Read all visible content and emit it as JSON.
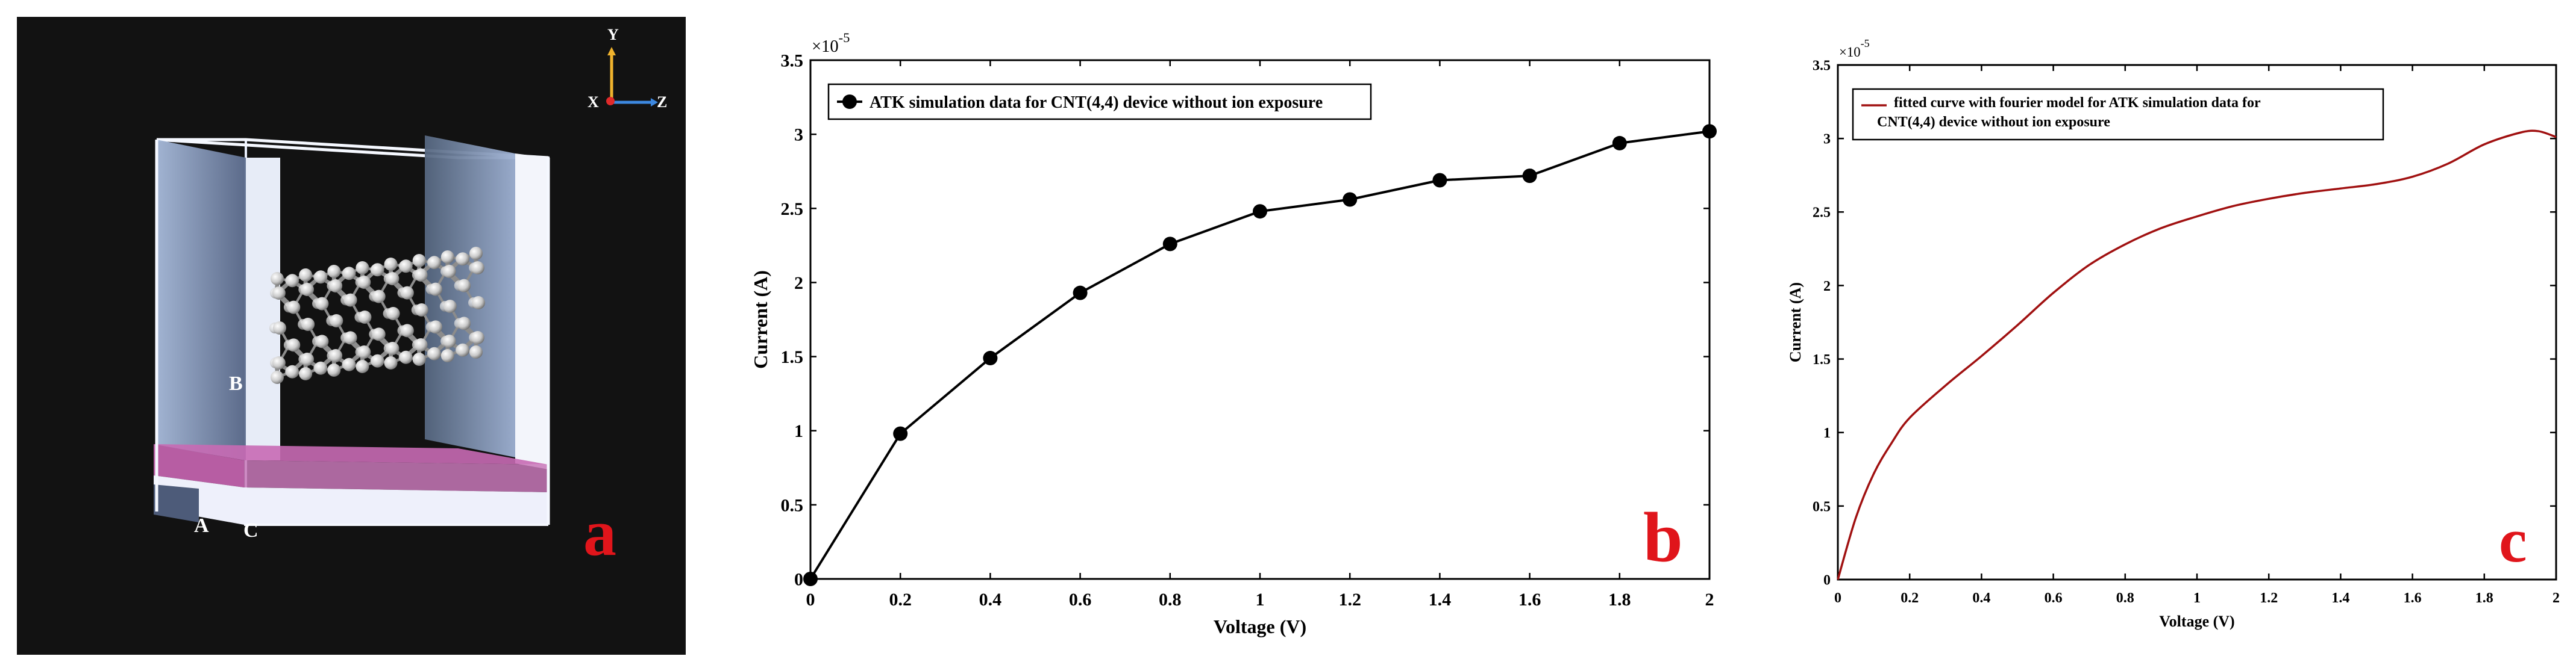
{
  "panel_a": {
    "label": "a",
    "axis_labels": {
      "y": "Y",
      "x": "X",
      "z": "Z"
    },
    "region_labels": {
      "a": "A",
      "b": "B",
      "c": "C"
    },
    "colors": {
      "background": "#121212",
      "panel_label": "#e0151b",
      "substrate": "#c86ab4"
    }
  },
  "chart_data": [
    {
      "panel": "b",
      "type": "line",
      "title": "",
      "xlabel": "Voltage (V)",
      "ylabel": "Current (A)",
      "scale_note": "×10",
      "scale_exp": "-5",
      "xlim": [
        0,
        2
      ],
      "ylim": [
        0,
        3.5
      ],
      "xticks": [
        "0",
        "0.2",
        "0.4",
        "0.6",
        "0.8",
        "1",
        "1.2",
        "1.4",
        "1.6",
        "1.8",
        "2"
      ],
      "yticks": [
        "0",
        "0.5",
        "1",
        "1.5",
        "2",
        "2.5",
        "3",
        "3.5"
      ],
      "legend": {
        "position": "top-left",
        "text": "ATK simulation data for CNT(4,4) device without ion exposure"
      },
      "series": [
        {
          "name": "ATK simulation data for CNT(4,4) device without ion exposure",
          "marker": "circle",
          "color": "#000000",
          "x": [
            0,
            0.2,
            0.4,
            0.6,
            0.8,
            1.0,
            1.2,
            1.4,
            1.6,
            1.8,
            2.0
          ],
          "values": [
            0,
            0.98,
            1.49,
            1.93,
            2.26,
            2.48,
            2.56,
            2.69,
            2.72,
            2.94,
            3.02
          ]
        }
      ],
      "panel_label": "b"
    },
    {
      "panel": "c",
      "type": "line",
      "title": "",
      "xlabel": "Voltage (V)",
      "ylabel": "Current (A)",
      "scale_note": "×10",
      "scale_exp": "-5",
      "xlim": [
        0,
        2
      ],
      "ylim": [
        0,
        3.5
      ],
      "xticks": [
        "0",
        "0.2",
        "0.4",
        "0.6",
        "0.8",
        "1",
        "1.2",
        "1.4",
        "1.6",
        "1.8",
        "2"
      ],
      "yticks": [
        "0",
        "0.5",
        "1",
        "1.5",
        "2",
        "2.5",
        "3",
        "3.5"
      ],
      "legend": {
        "position": "top-left",
        "lines": [
          "fitted curve with fourier model for ATK simulation data for",
          "CNT(4,4) device without ion exposure"
        ]
      },
      "series": [
        {
          "name": "fitted curve with fourier model for ATK simulation data for CNT(4,4) device without ion exposure",
          "color": "#a01010",
          "x": [
            0,
            0.05,
            0.1,
            0.15,
            0.2,
            0.3,
            0.4,
            0.5,
            0.6,
            0.7,
            0.8,
            0.9,
            1.0,
            1.1,
            1.2,
            1.3,
            1.4,
            1.5,
            1.6,
            1.7,
            1.8,
            1.9,
            1.95,
            2.0
          ],
          "values": [
            0,
            0.42,
            0.72,
            0.93,
            1.1,
            1.32,
            1.52,
            1.73,
            1.95,
            2.14,
            2.28,
            2.39,
            2.47,
            2.54,
            2.59,
            2.63,
            2.66,
            2.69,
            2.74,
            2.83,
            2.96,
            3.04,
            3.05,
            3.01
          ]
        }
      ],
      "panel_label": "c"
    }
  ]
}
